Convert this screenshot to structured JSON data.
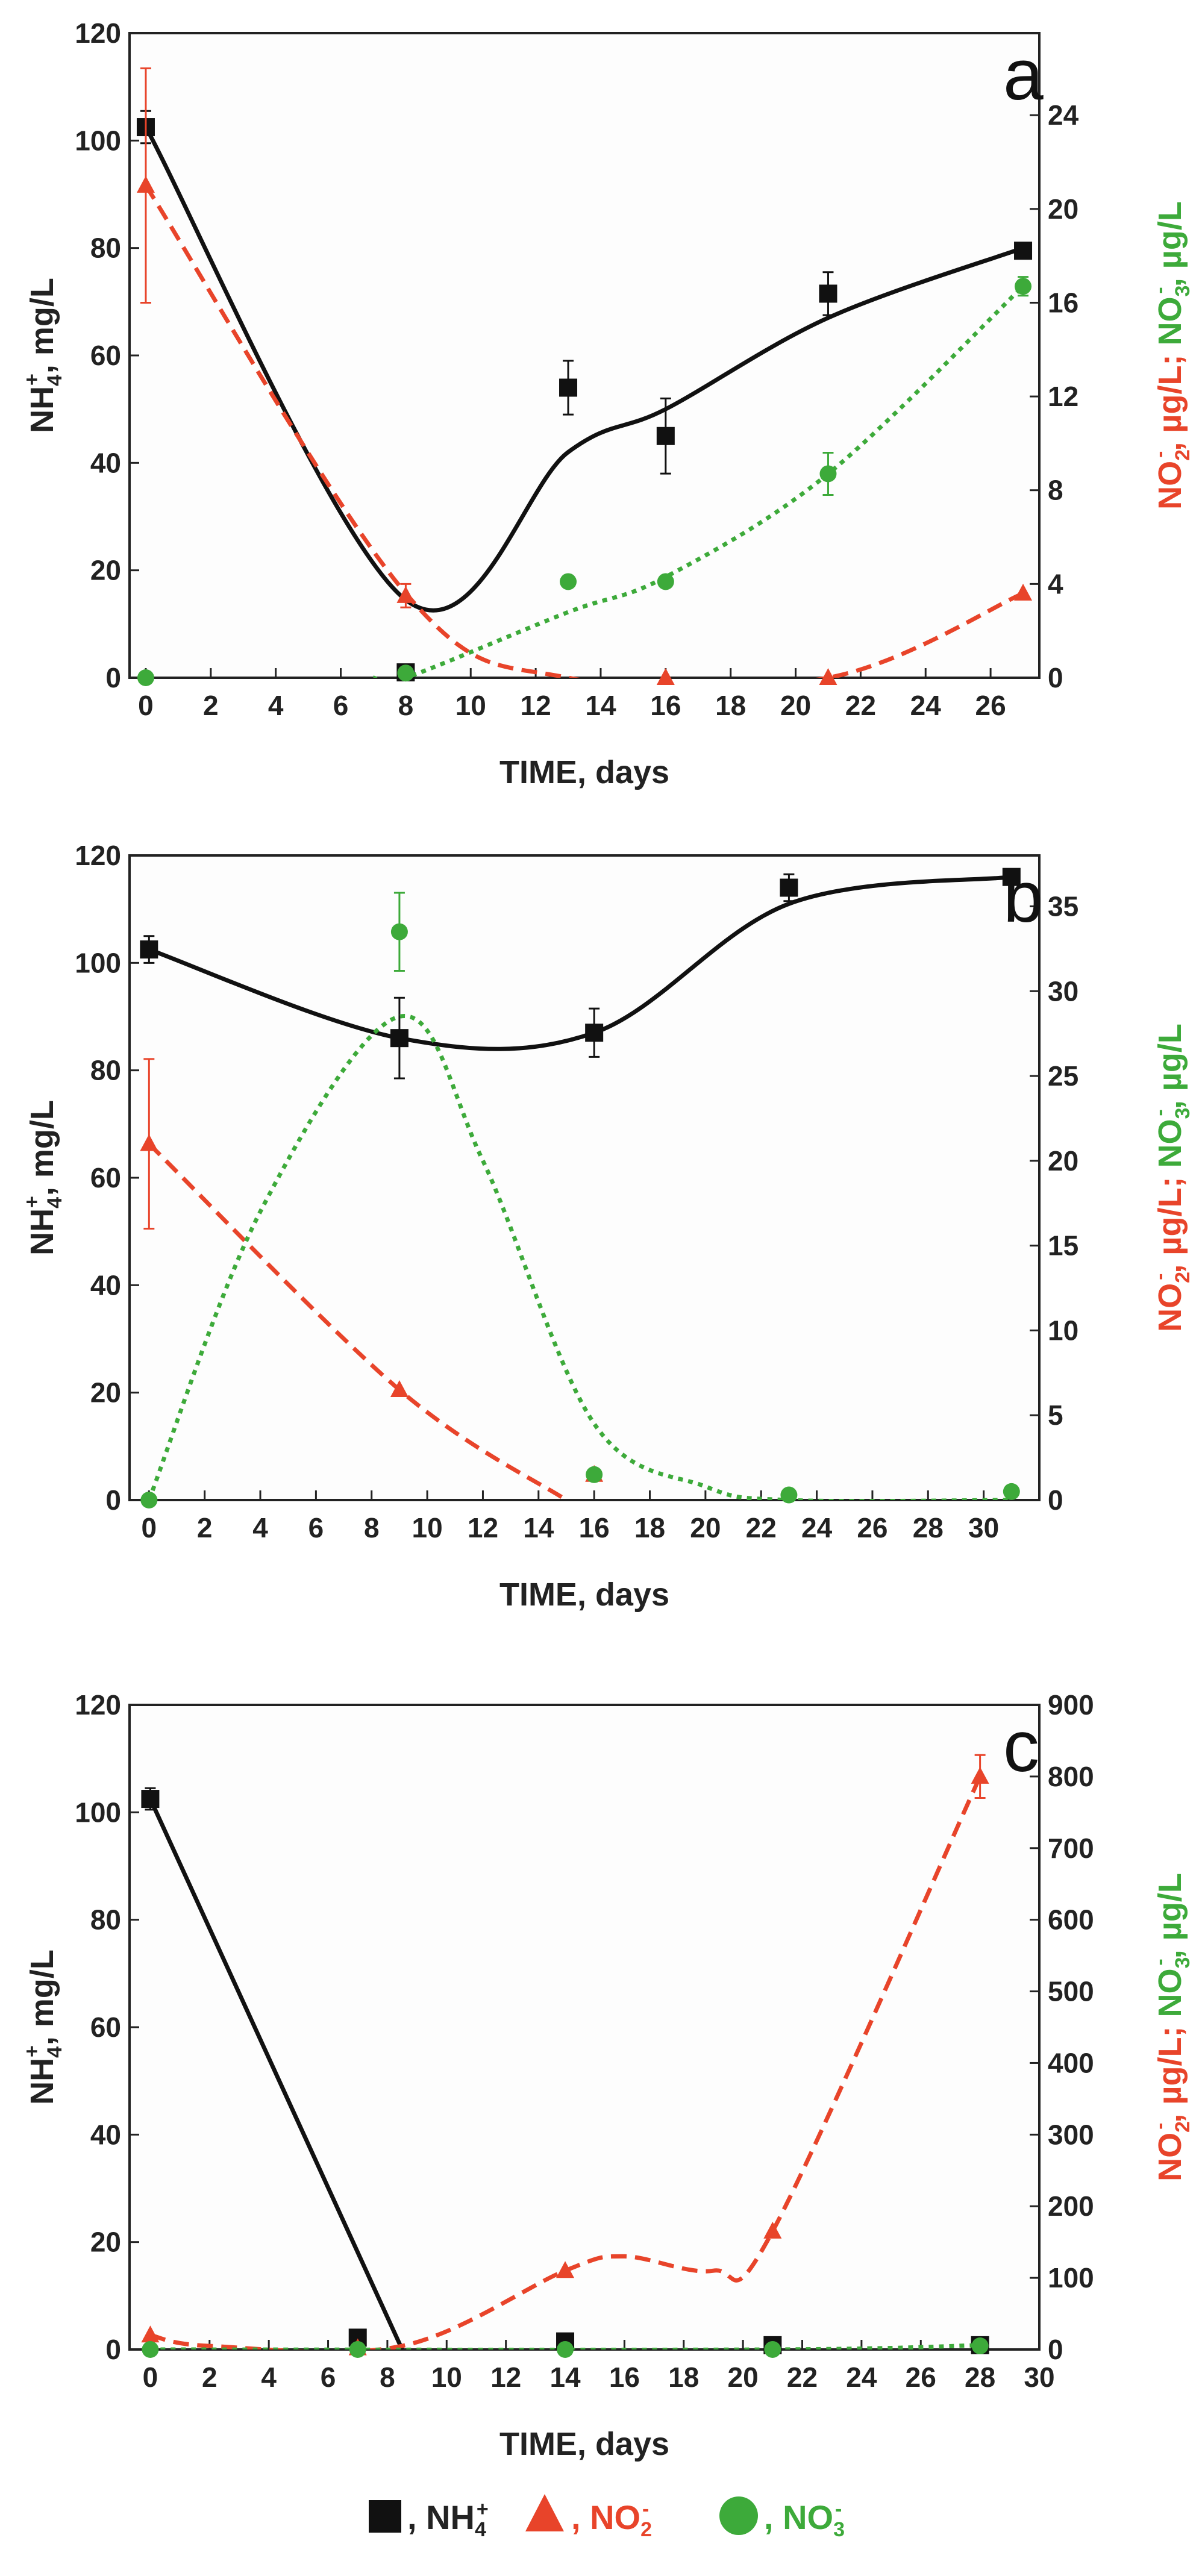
{
  "colors": {
    "nh4": "#111111",
    "no2": "#e8442a",
    "no3": "#3daa3a",
    "frame": "#222222"
  },
  "labels": {
    "x_title": "TIME, days",
    "y_left_main": "NH",
    "y_left_sub": "4",
    "y_left_sup": "+",
    "y_left_unit": ", mg/L",
    "y_right_no2": "NO",
    "y_right_no2_sub": "2",
    "y_right_no2_sup": "-",
    "y_right_no2_unit": ", µg/L;",
    "y_right_no3": "NO",
    "y_right_no3_sub": "3",
    "y_right_no3_sup": "-",
    "y_right_no3_unit": ", µg/L"
  },
  "legend": {
    "nh4": {
      "text": ", NH",
      "sub": "4",
      "sup": "+"
    },
    "no2": {
      "text": ", NO",
      "sub": "2",
      "sup": "-"
    },
    "no3": {
      "text": ", NO",
      "sub": "3",
      "sup": "-"
    }
  },
  "chart_data": [
    {
      "panel": "a",
      "type": "line",
      "x_ticks": [
        0,
        2,
        4,
        6,
        8,
        10,
        12,
        14,
        16,
        18,
        20,
        22,
        24,
        26
      ],
      "xlim": [
        -0.5,
        27.5
      ],
      "y_left": {
        "ylim": [
          0,
          120
        ],
        "ticks": [
          0,
          20,
          40,
          60,
          80,
          100,
          120
        ]
      },
      "y_right": {
        "ylim": [
          0,
          27.5
        ],
        "ticks": [
          0,
          4,
          8,
          12,
          16,
          20,
          24
        ]
      },
      "series": [
        {
          "key": "nh4",
          "axis": "left",
          "marker": "square",
          "line": "solid",
          "points": [
            [
              0,
              102.5,
              3
            ],
            [
              8,
              1,
              0
            ],
            [
              13,
              54,
              5
            ],
            [
              16,
              45,
              7
            ],
            [
              21,
              71.5,
              4
            ],
            [
              27,
              79.5,
              1
            ]
          ],
          "curve": [
            [
              0,
              102.5
            ],
            [
              8,
              14.5
            ],
            [
              13,
              42
            ],
            [
              16,
              50
            ],
            [
              21,
              67
            ],
            [
              27,
              80
            ]
          ]
        },
        {
          "key": "no2",
          "axis": "right",
          "marker": "triangle",
          "line": "dashed",
          "points": [
            [
              0,
              21,
              5
            ],
            [
              8,
              3.5,
              0.5
            ],
            [
              16,
              0,
              0
            ],
            [
              21,
              0,
              0
            ],
            [
              27,
              3.6,
              0
            ]
          ],
          "curve": [
            [
              0,
              21
            ],
            [
              8,
              3.6
            ],
            [
              13,
              0
            ],
            [
              21,
              0
            ],
            [
              27,
              3.6
            ]
          ]
        },
        {
          "key": "no3",
          "axis": "right",
          "marker": "circle",
          "line": "dotted",
          "points": [
            [
              0,
              0,
              0
            ],
            [
              8,
              0.2,
              0
            ],
            [
              13,
              4.1,
              0
            ],
            [
              16,
              4.1,
              0
            ],
            [
              21,
              8.7,
              0.9
            ],
            [
              27,
              16.7,
              0.4
            ]
          ],
          "curve": [
            [
              7,
              0
            ],
            [
              8,
              0
            ],
            [
              13,
              2.8
            ],
            [
              16,
              4.3
            ],
            [
              21,
              8.7
            ],
            [
              27,
              16.7
            ]
          ]
        }
      ]
    },
    {
      "panel": "b",
      "type": "line",
      "x_ticks": [
        0,
        2,
        4,
        6,
        8,
        10,
        12,
        14,
        16,
        18,
        20,
        22,
        24,
        26,
        28,
        30
      ],
      "xlim": [
        -0.7,
        32
      ],
      "y_left": {
        "ylim": [
          0,
          120
        ],
        "ticks": [
          0,
          20,
          40,
          60,
          80,
          100,
          120
        ]
      },
      "y_right": {
        "ylim": [
          0,
          38
        ],
        "ticks": [
          0,
          5,
          10,
          15,
          20,
          25,
          30,
          35
        ]
      },
      "series": [
        {
          "key": "nh4",
          "axis": "left",
          "marker": "square",
          "line": "solid",
          "points": [
            [
              0,
              102.5,
              2.5
            ],
            [
              9,
              86,
              7.5
            ],
            [
              16,
              87,
              4.5
            ],
            [
              23,
              114,
              2.5
            ],
            [
              31,
              116,
              0
            ]
          ],
          "curve": [
            [
              0,
              102.5
            ],
            [
              9,
              86
            ],
            [
              16,
              87
            ],
            [
              23,
              111
            ],
            [
              31,
              116
            ]
          ]
        },
        {
          "key": "no2",
          "axis": "right",
          "marker": "triangle",
          "line": "dashed",
          "points": [
            [
              0,
              21,
              5
            ],
            [
              9,
              6.5,
              0
            ],
            [
              16,
              1.5,
              0
            ]
          ],
          "curve": [
            [
              0,
              21
            ],
            [
              9,
              6.5
            ],
            [
              15,
              0
            ]
          ]
        },
        {
          "key": "no3",
          "axis": "right",
          "marker": "circle",
          "line": "dotted",
          "points": [
            [
              0,
              0,
              0
            ],
            [
              9,
              33.5,
              2.3
            ],
            [
              16,
              1.5,
              0
            ],
            [
              23,
              0.3,
              0
            ],
            [
              31,
              0.5,
              0
            ]
          ],
          "curve": [
            [
              0,
              0
            ],
            [
              4,
              17
            ],
            [
              9,
              28.5
            ],
            [
              12,
              20
            ],
            [
              16,
              4.5
            ],
            [
              20,
              0.8
            ],
            [
              23,
              0
            ],
            [
              31,
              0
            ]
          ]
        }
      ]
    },
    {
      "panel": "c",
      "type": "line",
      "x_ticks": [
        0,
        2,
        4,
        6,
        8,
        10,
        12,
        14,
        16,
        18,
        20,
        22,
        24,
        26,
        28,
        30
      ],
      "xlim": [
        -0.7,
        30
      ],
      "y_left": {
        "ylim": [
          0,
          120
        ],
        "ticks": [
          0,
          20,
          40,
          60,
          80,
          100,
          120
        ]
      },
      "y_right": {
        "ylim": [
          0,
          900
        ],
        "ticks": [
          0,
          100,
          200,
          300,
          400,
          500,
          600,
          700,
          800,
          900
        ]
      },
      "series": [
        {
          "key": "nh4",
          "axis": "left",
          "marker": "square",
          "line": "solid",
          "points": [
            [
              0,
              102.5,
              2
            ],
            [
              7,
              2.2,
              0
            ],
            [
              14,
              1.5,
              0
            ],
            [
              21,
              0.8,
              0
            ],
            [
              28,
              0.8,
              0
            ]
          ],
          "curve": [
            [
              0,
              102.5
            ],
            [
              8.5,
              0
            ]
          ]
        },
        {
          "key": "no2",
          "axis": "right",
          "marker": "triangle",
          "line": "dashed",
          "points": [
            [
              0,
              20,
              0
            ],
            [
              7,
              2,
              0
            ],
            [
              14,
              110,
              0
            ],
            [
              21,
              165,
              0
            ],
            [
              28,
              800,
              30
            ]
          ],
          "curve": [
            [
              0,
              20
            ],
            [
              2,
              5
            ],
            [
              8.5,
              5
            ],
            [
              14,
              110
            ],
            [
              16,
              130
            ],
            [
              19,
              110
            ],
            [
              21,
              165
            ],
            [
              28,
              800
            ]
          ]
        },
        {
          "key": "no3",
          "axis": "right",
          "marker": "circle",
          "line": "dotted",
          "points": [
            [
              0,
              0,
              0
            ],
            [
              7,
              0,
              0
            ],
            [
              14,
              0,
              0
            ],
            [
              21,
              0,
              0
            ],
            [
              28,
              5,
              0
            ]
          ],
          "curve": [
            [
              0,
              0
            ],
            [
              21,
              0
            ],
            [
              28,
              6
            ]
          ]
        }
      ]
    }
  ]
}
